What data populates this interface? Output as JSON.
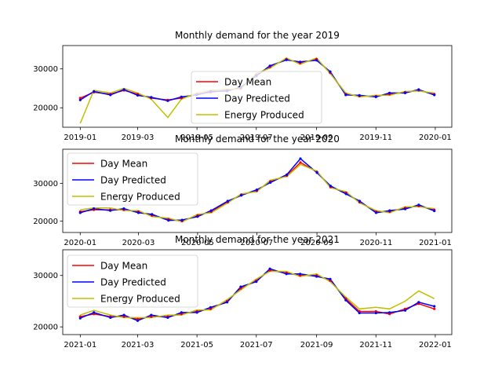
{
  "colors": {
    "day_mean": "#ff0000",
    "day_predicted": "#0000ff",
    "energy_produced": "#bfbf00",
    "axes": "#000000",
    "background": "#ffffff"
  },
  "chart_data": [
    {
      "type": "line",
      "title": "Monthly demand for the year 2019",
      "xlabel": "",
      "ylabel": "",
      "xticks": [
        "2019-01",
        "2019-03",
        "2019-05",
        "2019-07",
        "2019-09",
        "2019-11",
        "2020-01"
      ],
      "yticks": [
        "20000",
        "30000"
      ],
      "ytick_values": [
        20000,
        30000
      ],
      "xlim": [
        "2018-12-14",
        "2020-01-18"
      ],
      "ylim": [
        15000,
        36000
      ],
      "grid": false,
      "legend": {
        "placement": "center",
        "entries": [
          "Day Mean",
          "Day Predicted",
          "Energy Produced"
        ]
      },
      "x": [
        "2019-01-01",
        "2019-01-15",
        "2019-02-01",
        "2019-02-15",
        "2019-03-01",
        "2019-03-15",
        "2019-04-01",
        "2019-04-15",
        "2019-05-01",
        "2019-05-15",
        "2019-06-01",
        "2019-06-15",
        "2019-07-01",
        "2019-07-15",
        "2019-08-01",
        "2019-08-15",
        "2019-09-01",
        "2019-09-15",
        "2019-10-01",
        "2019-10-15",
        "2019-11-01",
        "2019-11-15",
        "2019-12-01",
        "2019-12-15",
        "2019-12-31"
      ],
      "series": [
        {
          "name": "Day Mean",
          "values": [
            22500,
            24000,
            23500,
            24500,
            23500,
            22500,
            22000,
            22500,
            23500,
            24000,
            24500,
            25000,
            28500,
            30500,
            32500,
            31500,
            32500,
            29000,
            23500,
            23000,
            23000,
            23500,
            24000,
            24500,
            23500
          ]
        },
        {
          "name": "Day Predicted",
          "values": [
            22000,
            24200,
            23300,
            24700,
            23200,
            22700,
            21800,
            22800,
            23300,
            24200,
            24300,
            25300,
            28200,
            30800,
            32300,
            31800,
            32200,
            29300,
            23300,
            23200,
            22800,
            23800,
            23800,
            24700,
            23300
          ]
        },
        {
          "name": "Energy Produced",
          "values": [
            16000,
            24500,
            23800,
            25000,
            23800,
            22200,
            17500,
            22200,
            23800,
            24500,
            24800,
            24800,
            28800,
            30200,
            32800,
            31200,
            32800,
            28800,
            23800,
            22800,
            23200,
            23200,
            24200,
            24300,
            23800
          ]
        }
      ]
    },
    {
      "type": "line",
      "title": "Monthly demand for the year 2020",
      "xlabel": "",
      "ylabel": "",
      "xticks": [
        "2020-01",
        "2020-03",
        "2020-05",
        "2020-07",
        "2020-09",
        "2020-11",
        "2021-01"
      ],
      "yticks": [
        "20000",
        "30000"
      ],
      "ytick_values": [
        20000,
        30000
      ],
      "xlim": [
        "2019-12-14",
        "2021-01-18"
      ],
      "ylim": [
        17000,
        39000
      ],
      "grid": false,
      "legend": {
        "placement": "upper left",
        "entries": [
          "Day Mean",
          "Day Predicted",
          "Energy Produced"
        ]
      },
      "x": [
        "2020-01-01",
        "2020-01-15",
        "2020-02-01",
        "2020-02-15",
        "2020-03-01",
        "2020-03-15",
        "2020-04-01",
        "2020-04-15",
        "2020-05-01",
        "2020-05-15",
        "2020-06-01",
        "2020-06-15",
        "2020-07-01",
        "2020-07-15",
        "2020-08-01",
        "2020-08-15",
        "2020-09-01",
        "2020-09-15",
        "2020-10-01",
        "2020-10-15",
        "2020-11-01",
        "2020-11-15",
        "2020-12-01",
        "2020-12-15",
        "2020-12-31"
      ],
      "series": [
        {
          "name": "Day Mean",
          "values": [
            22500,
            23000,
            23000,
            23000,
            22500,
            21500,
            20500,
            20000,
            21500,
            22500,
            25000,
            27000,
            28000,
            30500,
            32000,
            35500,
            33000,
            29000,
            27500,
            25000,
            22500,
            22500,
            23500,
            24000,
            23000
          ]
        },
        {
          "name": "Day Predicted",
          "values": [
            22200,
            23300,
            22800,
            23300,
            22200,
            21800,
            20200,
            20300,
            21200,
            22800,
            25300,
            26800,
            28300,
            30200,
            32300,
            36500,
            32800,
            29300,
            27200,
            25300,
            22200,
            22800,
            23200,
            24300,
            22700
          ]
        },
        {
          "name": "Energy Produced",
          "values": [
            23000,
            23500,
            23500,
            22800,
            22800,
            21200,
            20800,
            19800,
            21800,
            22200,
            24800,
            27200,
            27800,
            30800,
            31800,
            35000,
            33200,
            28800,
            27800,
            24800,
            22800,
            22200,
            23800,
            23800,
            23300
          ]
        }
      ]
    },
    {
      "type": "line",
      "title": "Monthly demand for the year 2021",
      "xlabel": "",
      "ylabel": "",
      "xticks": [
        "2021-01",
        "2021-03",
        "2021-05",
        "2021-07",
        "2021-09",
        "2021-11",
        "2022-01"
      ],
      "yticks": [
        "20000",
        "30000"
      ],
      "ytick_values": [
        20000,
        30000
      ],
      "xlim": [
        "2020-12-14",
        "2022-01-18"
      ],
      "ylim": [
        18500,
        35000
      ],
      "grid": false,
      "legend": {
        "placement": "upper left",
        "entries": [
          "Day Mean",
          "Day Predicted",
          "Energy Produced"
        ]
      },
      "x": [
        "2021-01-01",
        "2021-01-15",
        "2021-02-01",
        "2021-02-15",
        "2021-03-01",
        "2021-03-15",
        "2021-04-01",
        "2021-04-15",
        "2021-05-01",
        "2021-05-15",
        "2021-06-01",
        "2021-06-15",
        "2021-07-01",
        "2021-07-15",
        "2021-08-01",
        "2021-08-15",
        "2021-09-01",
        "2021-09-15",
        "2021-10-01",
        "2021-10-15",
        "2021-11-01",
        "2021-11-15",
        "2021-12-01",
        "2021-12-15",
        "2021-12-31"
      ],
      "series": [
        {
          "name": "Day Mean",
          "values": [
            22000,
            22500,
            22000,
            22000,
            21500,
            22000,
            22000,
            22500,
            23000,
            23500,
            25000,
            27500,
            29000,
            31000,
            30500,
            30000,
            30000,
            29000,
            25500,
            23000,
            23000,
            22500,
            23500,
            24500,
            23500
          ]
        },
        {
          "name": "Day Predicted",
          "values": [
            21700,
            22800,
            21800,
            22300,
            21200,
            22300,
            21800,
            22800,
            22800,
            23800,
            24800,
            27800,
            28800,
            31300,
            30300,
            30300,
            29800,
            29300,
            25200,
            22700,
            22700,
            22800,
            23200,
            24800,
            24000
          ]
        },
        {
          "name": "Energy Produced",
          "values": [
            22300,
            23200,
            22300,
            21800,
            21800,
            21800,
            22300,
            22300,
            23300,
            23300,
            25300,
            27200,
            29300,
            30800,
            30800,
            29800,
            30300,
            28800,
            25800,
            23500,
            23800,
            23500,
            25000,
            27000,
            25500
          ]
        }
      ]
    }
  ]
}
